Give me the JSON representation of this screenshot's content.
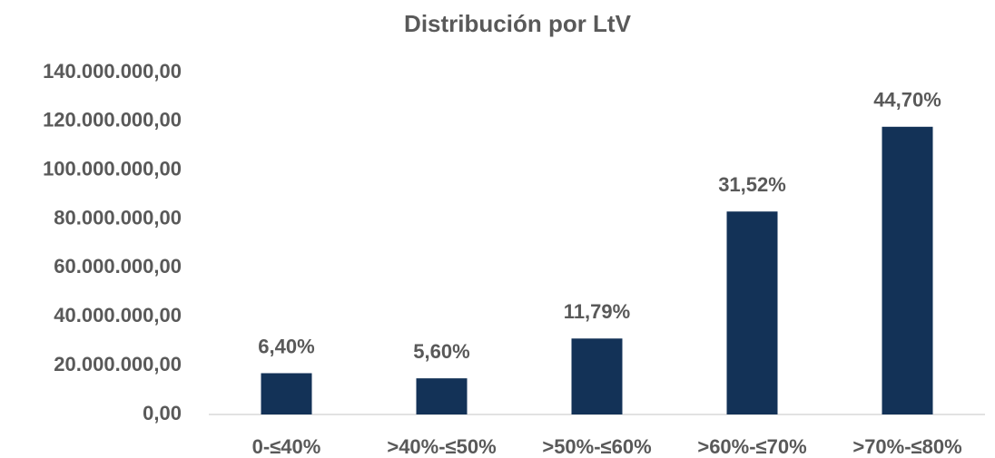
{
  "chart_data": {
    "type": "bar",
    "title": "Distribución por LtV",
    "categories": [
      "0-≤40%",
      ">40%-≤50%",
      ">50%-≤60%",
      ">60%-≤70%",
      ">70%-≤80%"
    ],
    "values": [
      16900000,
      14800000,
      31100000,
      83100000,
      117800000
    ],
    "annotations": [
      "6,40%",
      "5,60%",
      "11,79%",
      "31,52%",
      "44,70%"
    ],
    "color": "#133257",
    "ylim": [
      0,
      140000000
    ],
    "yticks": [
      {
        "value": 0,
        "label": "0,00"
      },
      {
        "value": 20000000,
        "label": "20.000.000,00"
      },
      {
        "value": 40000000,
        "label": "40.000.000,00"
      },
      {
        "value": 60000000,
        "label": "60.000.000,00"
      },
      {
        "value": 80000000,
        "label": "80.000.000,00"
      },
      {
        "value": 100000000,
        "label": "100.000.000,00"
      },
      {
        "value": 120000000,
        "label": "120.000.000,00"
      },
      {
        "value": 140000000,
        "label": "140.000.000,00"
      }
    ],
    "grid": false
  }
}
